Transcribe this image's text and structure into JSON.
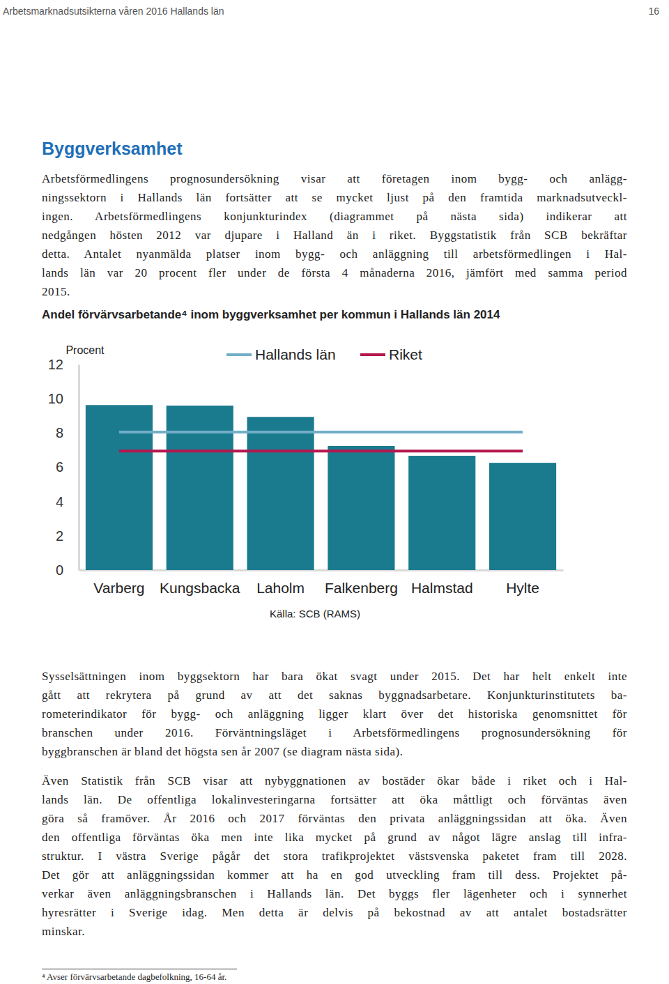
{
  "header": {
    "title": "Arbetsmarknadsutsikterna våren 2016 Hallands län",
    "page": "16"
  },
  "heading": "Byggverksamhet",
  "intro": [
    "Arbetsförmedlingens prognosundersökning visar att företagen inom bygg- och anlägg-",
    "ningssektorn i Hallands län fortsätter att se mycket ljust på den framtida marknadsutveckl-",
    "ingen. Arbetsförmedlingens konjunkturindex (diagrammet på nästa sida) indikerar att",
    "nedgången hösten 2012 var djupare i Halland än i riket. Byggstatistik från SCB bekräftar",
    "detta. Antalet nyanmälda platser inom bygg- och anläggning till arbetsförmedlingen i Hal-",
    "lands län var 20 procent fler under de första 4 månaderna 2016, jämfört med samma period",
    "2015."
  ],
  "chart_data": {
    "type": "bar",
    "title": "Andel förvärvsarbetande⁴ inom byggverksamhet per kommun i Hallands län 2014",
    "ylabel": "Procent",
    "categories": [
      "Varberg",
      "Kungsbacka",
      "Laholm",
      "Falkenberg",
      "Halmstad",
      "Hylte"
    ],
    "values": [
      9.63,
      9.6,
      8.94,
      7.24,
      6.67,
      6.26
    ],
    "color": "#1b7b8e",
    "series": [
      {
        "name": "Hallands län",
        "type": "line",
        "color": "#72aec8",
        "values": [
          8.05,
          8.05,
          8.05,
          8.05,
          8.05,
          8.05
        ]
      },
      {
        "name": "Riket",
        "type": "line",
        "color": "#b5174e",
        "values": [
          6.95,
          6.95,
          6.95,
          6.95,
          6.95,
          6.95
        ]
      }
    ],
    "ylim": [
      0,
      12
    ],
    "yticks": [
      0,
      2,
      4,
      6,
      8,
      10,
      12
    ],
    "grid": false,
    "legend": "top",
    "source": "Källa: SCB (RAMS)"
  },
  "body": [
    [
      "Sysselsättningen inom byggsektorn har bara ökat svagt under 2015. Det har helt enkelt inte",
      "gått att rekrytera på grund av att det saknas byggnadsarbetare. Konjunkturinstitutets ba-",
      "rometerindikator för bygg- och anläggning ligger klart över det historiska genomsnittet för",
      "branschen under 2016. Förväntningsläget i Arbetsförmedlingens prognosundersökning för",
      "byggbranschen är bland det högsta sen år 2007 (se diagram nästa sida)."
    ],
    [
      "Även Statistik från SCB visar att nybyggnationen av bostäder ökar både i riket och i Hal-",
      "lands län. De offentliga lokalinvesteringarna fortsätter att öka måttligt och förväntas även",
      "göra så framöver. År 2016 och 2017 förväntas den privata anläggningssidan att öka. Även",
      "den offentliga förväntas öka men inte lika mycket på grund av något lägre anslag till infra-",
      "struktur. I västra Sverige pågår det stora trafikprojektet västsvenska paketet fram till 2028.",
      "Det gör att anläggningssidan kommer att ha en god utveckling fram till dess. Projektet på-",
      "verkar även anläggningsbranschen i Hallands län. Det byggs fler lägenheter och i synnerhet",
      "hyresrätter i Sverige idag. Men detta är delvis på bekostnad av att antalet bostadsrätter",
      "minskar."
    ]
  ],
  "footnote": "⁴ Avser förvärvsarbetande dagbefolkning, 16-64 år."
}
